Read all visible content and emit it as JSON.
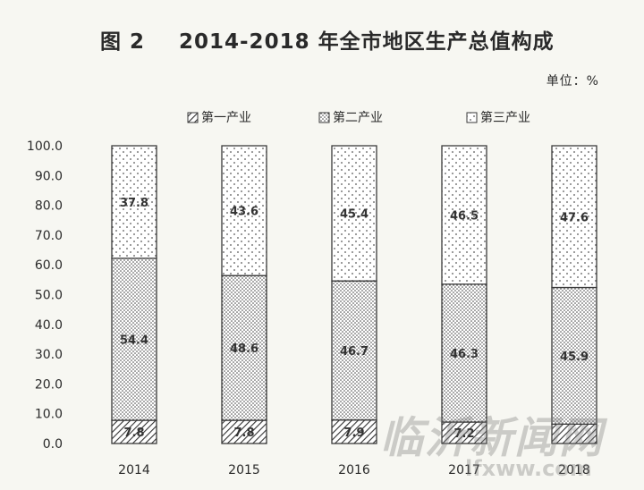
{
  "figure_label": "图 2",
  "title": "2014-2018 年全市地区生产总值构成",
  "unit": "单位：%",
  "watermark": {
    "main": "临沂新闻网",
    "sub": "lfxww.com"
  },
  "colors": {
    "bar_stroke": "#3a3a3a",
    "dots": "#444444",
    "text": "#2a2a2a",
    "background": "#f7f7f2"
  },
  "chart_data": {
    "type": "bar",
    "stacked": true,
    "categories": [
      "2014",
      "2015",
      "2016",
      "2017",
      "2018"
    ],
    "series": [
      {
        "name": "第一产业",
        "pattern": "diagonal-hatch",
        "values": [
          7.8,
          7.8,
          7.9,
          7.2,
          6.5
        ]
      },
      {
        "name": "第二产业",
        "pattern": "dense-dots",
        "values": [
          54.4,
          48.6,
          46.7,
          46.3,
          45.9
        ]
      },
      {
        "name": "第三产业",
        "pattern": "sparse-dots",
        "values": [
          37.8,
          43.6,
          45.4,
          46.5,
          47.6
        ]
      }
    ],
    "data_labels": [
      [
        "7.8",
        "7.8",
        "7.9",
        "7.2",
        ""
      ],
      [
        "54.4",
        "48.6",
        "46.7",
        "46.3",
        "45.9"
      ],
      [
        "37.8",
        "43.6",
        "45.4",
        "46.5",
        "47.6"
      ]
    ],
    "ylim": [
      0,
      100
    ],
    "yticks": [
      "0.0",
      "10.0",
      "20.0",
      "30.0",
      "40.0",
      "50.0",
      "60.0",
      "70.0",
      "80.0",
      "90.0",
      "100.0"
    ],
    "grid": false,
    "legend": "top"
  }
}
